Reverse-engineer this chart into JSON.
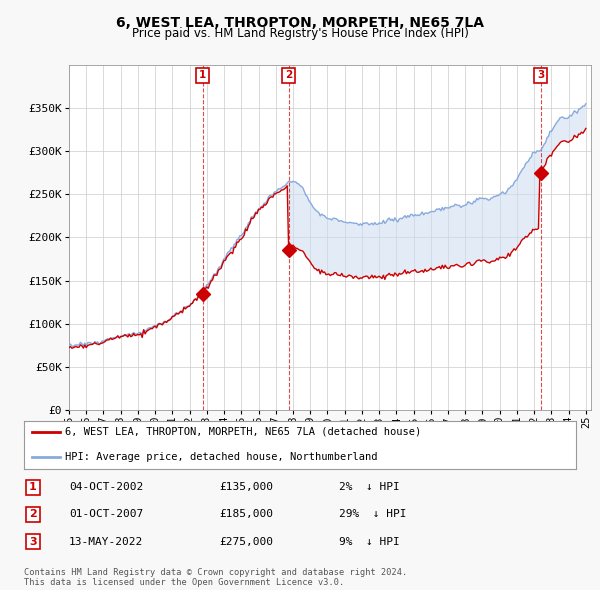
{
  "title": "6, WEST LEA, THROPTON, MORPETH, NE65 7LA",
  "subtitle": "Price paid vs. HM Land Registry's House Price Index (HPI)",
  "title_fontsize": 10,
  "subtitle_fontsize": 8.5,
  "hpi_color": "#88aadd",
  "price_color": "#cc0000",
  "fill_color": "#ccddf0",
  "ylim": [
    0,
    400000
  ],
  "yticks": [
    0,
    50000,
    100000,
    150000,
    200000,
    250000,
    300000,
    350000
  ],
  "ytick_labels": [
    "£0",
    "£50K",
    "£100K",
    "£150K",
    "£200K",
    "£250K",
    "£300K",
    "£350K"
  ],
  "fig_bg": "#f8f8f8",
  "plot_bg": "#ffffff",
  "legend_entries": [
    "6, WEST LEA, THROPTON, MORPETH, NE65 7LA (detached house)",
    "HPI: Average price, detached house, Northumberland"
  ],
  "transactions": [
    {
      "num": 1,
      "date": "04-OCT-2002",
      "price": 135000,
      "pct": "2%",
      "dir": "↓"
    },
    {
      "num": 2,
      "date": "01-OCT-2007",
      "price": 185000,
      "pct": "29%",
      "dir": "↓"
    },
    {
      "num": 3,
      "date": "13-MAY-2022",
      "price": 275000,
      "pct": "9%",
      "dir": "↓"
    }
  ],
  "footer": "Contains HM Land Registry data © Crown copyright and database right 2024.\nThis data is licensed under the Open Government Licence v3.0.",
  "marker_years": [
    2002.75,
    2007.75,
    2022.37
  ],
  "marker_prices": [
    135000,
    185000,
    275000
  ],
  "vline_years": [
    2002.75,
    2007.75,
    2022.37
  ]
}
